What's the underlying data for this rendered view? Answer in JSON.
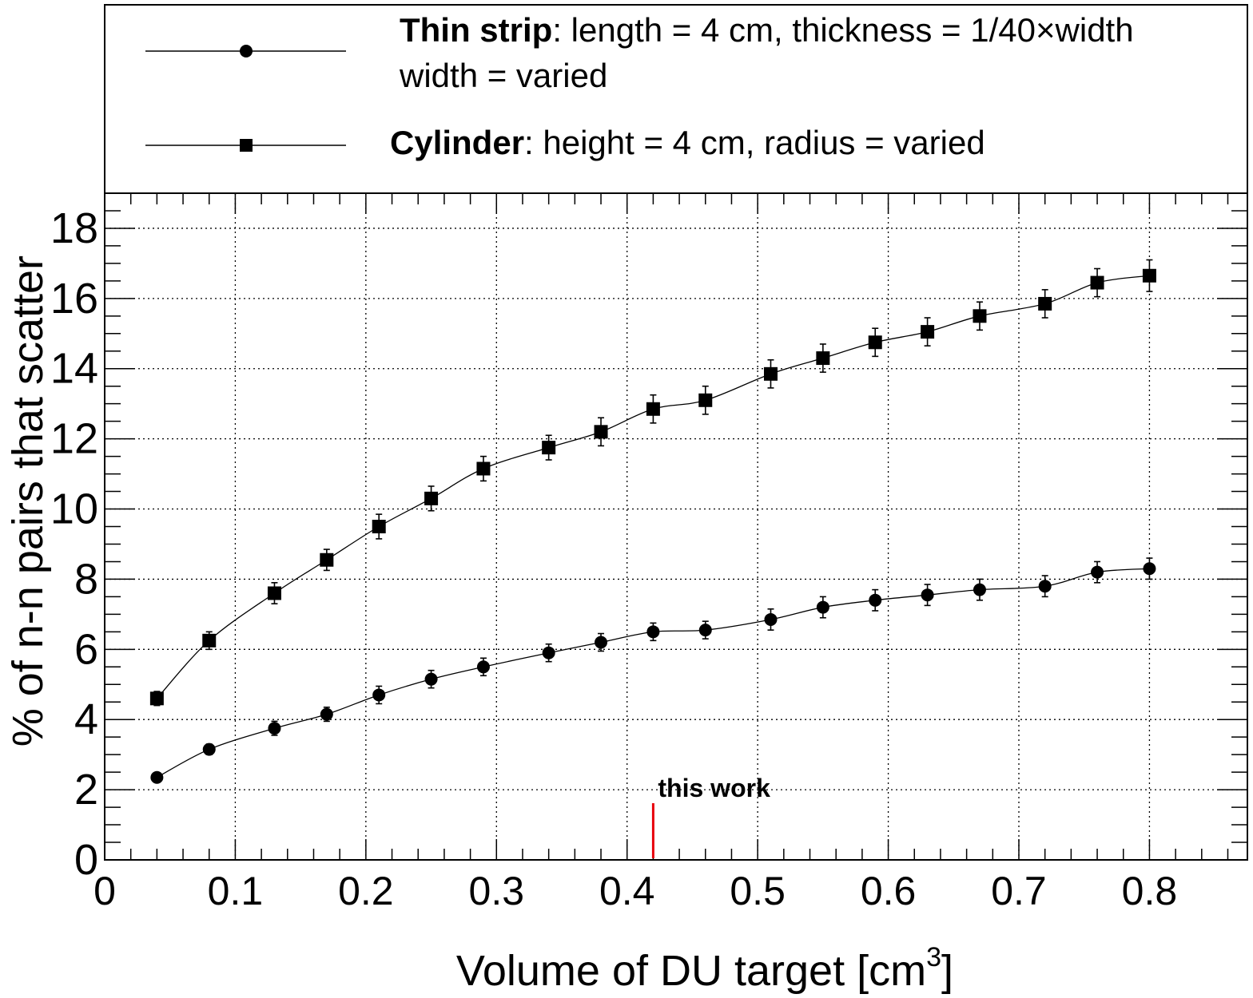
{
  "legend": {
    "entries": [
      {
        "marker": "circle",
        "bold_text": "Thin strip",
        "text_line1": ": length = 4 cm, thickness  = 1/40×width",
        "text_line2": "width = varied"
      },
      {
        "marker": "square",
        "bold_text": "Cylinder",
        "text_line1": ": height = 4 cm, radius = varied"
      }
    ]
  },
  "annotation": {
    "text": "this work",
    "x": 0.42,
    "color": "#e8000b"
  },
  "chart_data": {
    "type": "line",
    "xlabel": "Volume of DU target [cm",
    "xlabel_sup": "3",
    "xlabel_end": "]",
    "ylabel": "% of n-n pairs that scatter",
    "xlim": [
      0,
      0.875
    ],
    "ylim": [
      0,
      19
    ],
    "x_ticks": [
      "0",
      "0.1",
      "0.2",
      "0.3",
      "0.4",
      "0.5",
      "0.6",
      "0.7",
      "0.8"
    ],
    "y_ticks": [
      "0",
      "2",
      "4",
      "6",
      "8",
      "10",
      "12",
      "14",
      "16",
      "18"
    ],
    "grid": true,
    "series": [
      {
        "name": "Thin strip",
        "marker": "circle",
        "x": [
          0.04,
          0.08,
          0.13,
          0.17,
          0.21,
          0.25,
          0.29,
          0.34,
          0.38,
          0.42,
          0.46,
          0.51,
          0.55,
          0.59,
          0.63,
          0.67,
          0.72,
          0.76,
          0.8
        ],
        "y": [
          2.35,
          3.15,
          3.75,
          4.15,
          4.7,
          5.15,
          5.5,
          5.9,
          6.2,
          6.5,
          6.55,
          6.85,
          7.2,
          7.4,
          7.55,
          7.7,
          7.8,
          8.2,
          8.3
        ],
        "err": [
          0.1,
          0.15,
          0.2,
          0.2,
          0.25,
          0.25,
          0.25,
          0.25,
          0.25,
          0.25,
          0.25,
          0.3,
          0.3,
          0.3,
          0.3,
          0.3,
          0.3,
          0.3,
          0.3
        ]
      },
      {
        "name": "Cylinder",
        "marker": "square",
        "x": [
          0.04,
          0.08,
          0.13,
          0.17,
          0.21,
          0.25,
          0.29,
          0.34,
          0.38,
          0.42,
          0.46,
          0.51,
          0.55,
          0.59,
          0.63,
          0.67,
          0.72,
          0.76,
          0.8
        ],
        "y": [
          4.6,
          6.25,
          7.6,
          8.55,
          9.5,
          10.3,
          11.15,
          11.75,
          12.2,
          12.85,
          13.1,
          13.85,
          14.3,
          14.75,
          15.05,
          15.5,
          15.85,
          16.45,
          16.65
        ],
        "err": [
          0.2,
          0.25,
          0.3,
          0.3,
          0.35,
          0.35,
          0.35,
          0.35,
          0.4,
          0.4,
          0.4,
          0.4,
          0.4,
          0.4,
          0.4,
          0.4,
          0.4,
          0.4,
          0.45
        ]
      }
    ]
  }
}
